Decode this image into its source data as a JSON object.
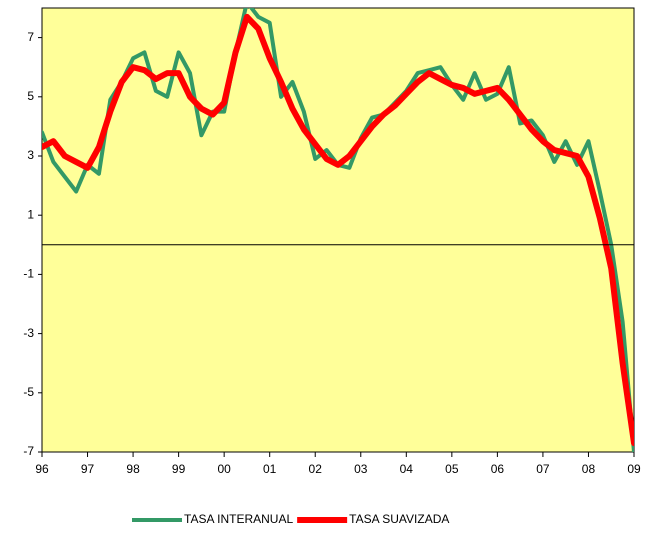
{
  "chart_data": {
    "type": "line",
    "categories": [
      "96",
      null,
      null,
      null,
      "97",
      null,
      null,
      null,
      "98",
      null,
      null,
      null,
      "99",
      null,
      null,
      null,
      "00",
      null,
      null,
      null,
      "01",
      null,
      null,
      null,
      "02",
      null,
      null,
      null,
      "03",
      null,
      null,
      null,
      "04",
      null,
      null,
      null,
      "05",
      null,
      null,
      null,
      "06",
      null,
      null,
      null,
      "07",
      null,
      null,
      null,
      "08",
      null,
      null,
      null,
      "09"
    ],
    "series": [
      {
        "name": "TASA INTERANUAL",
        "color": "#339966",
        "width": 4,
        "values": [
          3.8,
          2.8,
          2.3,
          1.8,
          2.7,
          2.4,
          4.9,
          5.5,
          6.3,
          6.5,
          5.2,
          5.0,
          6.5,
          5.8,
          3.7,
          4.5,
          4.5,
          6.5,
          8.2,
          7.7,
          7.5,
          5.0,
          5.5,
          4.5,
          2.9,
          3.2,
          2.7,
          2.6,
          3.6,
          4.3,
          4.4,
          4.8,
          5.2,
          5.8,
          5.9,
          6.0,
          5.4,
          4.9,
          5.8,
          4.9,
          5.1,
          6.0,
          4.1,
          4.2,
          3.7,
          2.8,
          3.5,
          2.7,
          3.5,
          1.8,
          0.0,
          -2.6,
          -7.0
        ]
      },
      {
        "name": "TASA SUAVIZADA",
        "color": "#ff0000",
        "width": 6,
        "values": [
          3.3,
          3.5,
          3.0,
          2.8,
          2.6,
          3.3,
          4.5,
          5.5,
          6.0,
          5.9,
          5.6,
          5.8,
          5.8,
          5.0,
          4.6,
          4.4,
          4.8,
          6.5,
          7.7,
          7.3,
          6.3,
          5.5,
          4.6,
          3.9,
          3.4,
          2.9,
          2.7,
          3.0,
          3.5,
          4.0,
          4.4,
          4.7,
          5.1,
          5.5,
          5.8,
          5.6,
          5.4,
          5.3,
          5.1,
          5.2,
          5.3,
          4.9,
          4.4,
          3.9,
          3.5,
          3.2,
          3.1,
          3.0,
          2.3,
          0.9,
          -0.8,
          -4.0,
          -6.7
        ]
      }
    ],
    "ylim": [
      -7,
      8
    ],
    "yticks": [
      -7,
      -5,
      -3,
      -1,
      1,
      3,
      5,
      7
    ],
    "zero_line": 0,
    "background": "#ffff99",
    "legend": "bottom"
  }
}
